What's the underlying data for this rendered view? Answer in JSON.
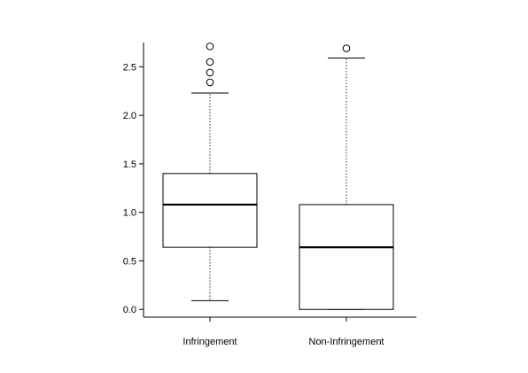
{
  "chart_data": {
    "type": "boxplot",
    "title": "",
    "xlabel": "",
    "ylabel": "",
    "ylim": [
      -0.08,
      2.75
    ],
    "y_ticks": [
      0.0,
      0.5,
      1.0,
      1.5,
      2.0,
      2.5
    ],
    "y_tick_labels": [
      "0.0",
      "0.5",
      "1.0",
      "1.5",
      "2.0",
      "2.5"
    ],
    "categories": [
      "Infringement",
      "Non-Infringement"
    ],
    "boxes": [
      {
        "category": "Infringement",
        "whisker_low": 0.09,
        "q1": 0.64,
        "median": 1.08,
        "q3": 1.4,
        "whisker_high": 2.23,
        "outliers": [
          2.34,
          2.44,
          2.55,
          2.71
        ]
      },
      {
        "category": "Non-Infringement",
        "whisker_low": 0.0,
        "q1": 0.0,
        "median": 0.64,
        "q3": 1.08,
        "whisker_high": 2.59,
        "outliers": [
          2.69
        ]
      }
    ],
    "grid": false,
    "legend": "none"
  },
  "colors": {
    "stroke": "#000000",
    "background": "#ffffff"
  }
}
